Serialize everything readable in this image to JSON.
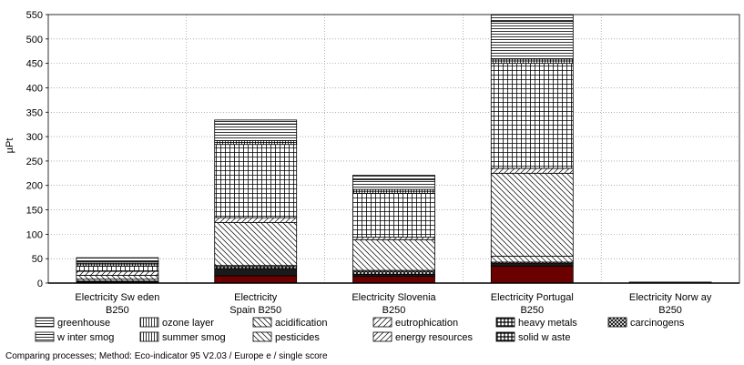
{
  "chart_data": {
    "type": "bar",
    "stacked": true,
    "ylabel": "µPt",
    "ylim": [
      0,
      550
    ],
    "yticks": [
      0,
      50,
      100,
      150,
      200,
      250,
      300,
      350,
      400,
      450,
      500,
      550
    ],
    "grid": "dotted",
    "legend_position": "bottom",
    "categories": [
      [
        "Electricity Sw eden",
        "B250"
      ],
      [
        "Electricity",
        "Spain B250"
      ],
      [
        "Electricity Slovenia",
        "B250"
      ],
      [
        "Electricity Portugal",
        "B250"
      ],
      [
        "Electricity Norw ay",
        "B250"
      ]
    ],
    "series": [
      {
        "name": "solid w aste",
        "pattern": "solid-red",
        "values": [
          2,
          15,
          14,
          35,
          0
        ]
      },
      {
        "name": "energy resources",
        "pattern": "solid-dark",
        "values": [
          1,
          15,
          4,
          5,
          0
        ]
      },
      {
        "name": "carcinogens",
        "pattern": "crosshatch-dense",
        "values": [
          1,
          4,
          6,
          3,
          0
        ]
      },
      {
        "name": "pesticides",
        "pattern": "hatch-back",
        "values": [
          4,
          2,
          2,
          12,
          0
        ]
      },
      {
        "name": "acidification",
        "pattern": "hatch-back",
        "values": [
          8,
          88,
          63,
          170,
          0
        ]
      },
      {
        "name": "eutrophication",
        "pattern": "hatch-fwd",
        "values": [
          8,
          10,
          5,
          10,
          0
        ]
      },
      {
        "name": "heavy metals",
        "pattern": "grid",
        "values": [
          11,
          150,
          90,
          215,
          0
        ]
      },
      {
        "name": "ozone layer",
        "pattern": "vlines",
        "values": [
          4,
          4,
          4,
          5,
          0
        ]
      },
      {
        "name": "summer smog",
        "pattern": "vlines",
        "values": [
          2,
          4,
          4,
          4,
          0
        ]
      },
      {
        "name": "winter smog",
        "pattern": "hlines",
        "values": [
          3,
          34,
          20,
          77,
          0
        ]
      },
      {
        "name": "greenhouse",
        "pattern": "hlines",
        "values": [
          8,
          8,
          9,
          14,
          2
        ]
      }
    ],
    "legend": [
      [
        "greenhouse",
        "ozone layer",
        "acidification",
        "eutrophication",
        "heavy metals",
        "carcinogens"
      ],
      [
        "w inter smog",
        "summer smog",
        "pesticides",
        "energy resources",
        "solid w aste"
      ]
    ],
    "legend_patterns": [
      [
        "hlines",
        "vlines",
        "hatch-back",
        "hatch-fwd",
        "grid-dark",
        "crosshatch-dense"
      ],
      [
        "hlines",
        "vlines",
        "hatch-back",
        "hatch-fwd",
        "grid-dark"
      ]
    ]
  },
  "footer": "Comparing processes;  Method: Eco-indicator 95 V2.03 /  Europe e / single score"
}
